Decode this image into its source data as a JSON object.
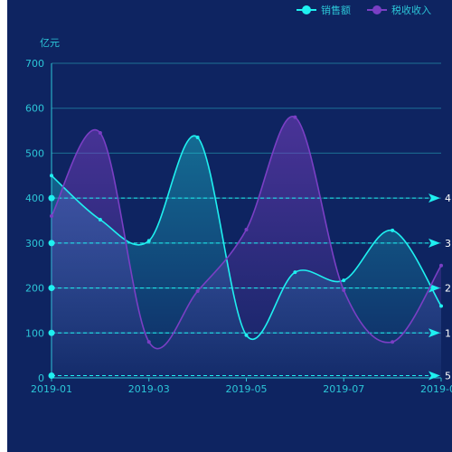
{
  "chart_data": {
    "type": "line",
    "ylabel": "亿元",
    "ylim": [
      0,
      700
    ],
    "yticks": [
      0,
      100,
      200,
      300,
      400,
      500,
      600,
      700
    ],
    "x": [
      "2019-01",
      "2019-02",
      "2019-03",
      "2019-04",
      "2019-05",
      "2019-06",
      "2019-07",
      "2019-08",
      "2019-09"
    ],
    "xtick_labels": [
      "2019-01",
      "2019-03",
      "2019-05",
      "2019-07",
      "2019-09"
    ],
    "series": [
      {
        "name": "销售额",
        "color": "#1ff0f0",
        "values": [
          450,
          352,
          305,
          535,
          95,
          235,
          217,
          328,
          160
        ]
      },
      {
        "name": "税收收入",
        "color": "#7a3fc4",
        "values": [
          360,
          545,
          80,
          193,
          330,
          580,
          195,
          80,
          250
        ]
      }
    ],
    "mark_lines": [
      {
        "value": 5,
        "label": "5"
      },
      {
        "value": 100,
        "label": "1"
      },
      {
        "value": 200,
        "label": "2"
      },
      {
        "value": 300,
        "label": "3"
      },
      {
        "value": 400,
        "label": "4"
      }
    ],
    "legend_position": "top-right",
    "grid": true,
    "smooth": true,
    "area_fill": true
  }
}
